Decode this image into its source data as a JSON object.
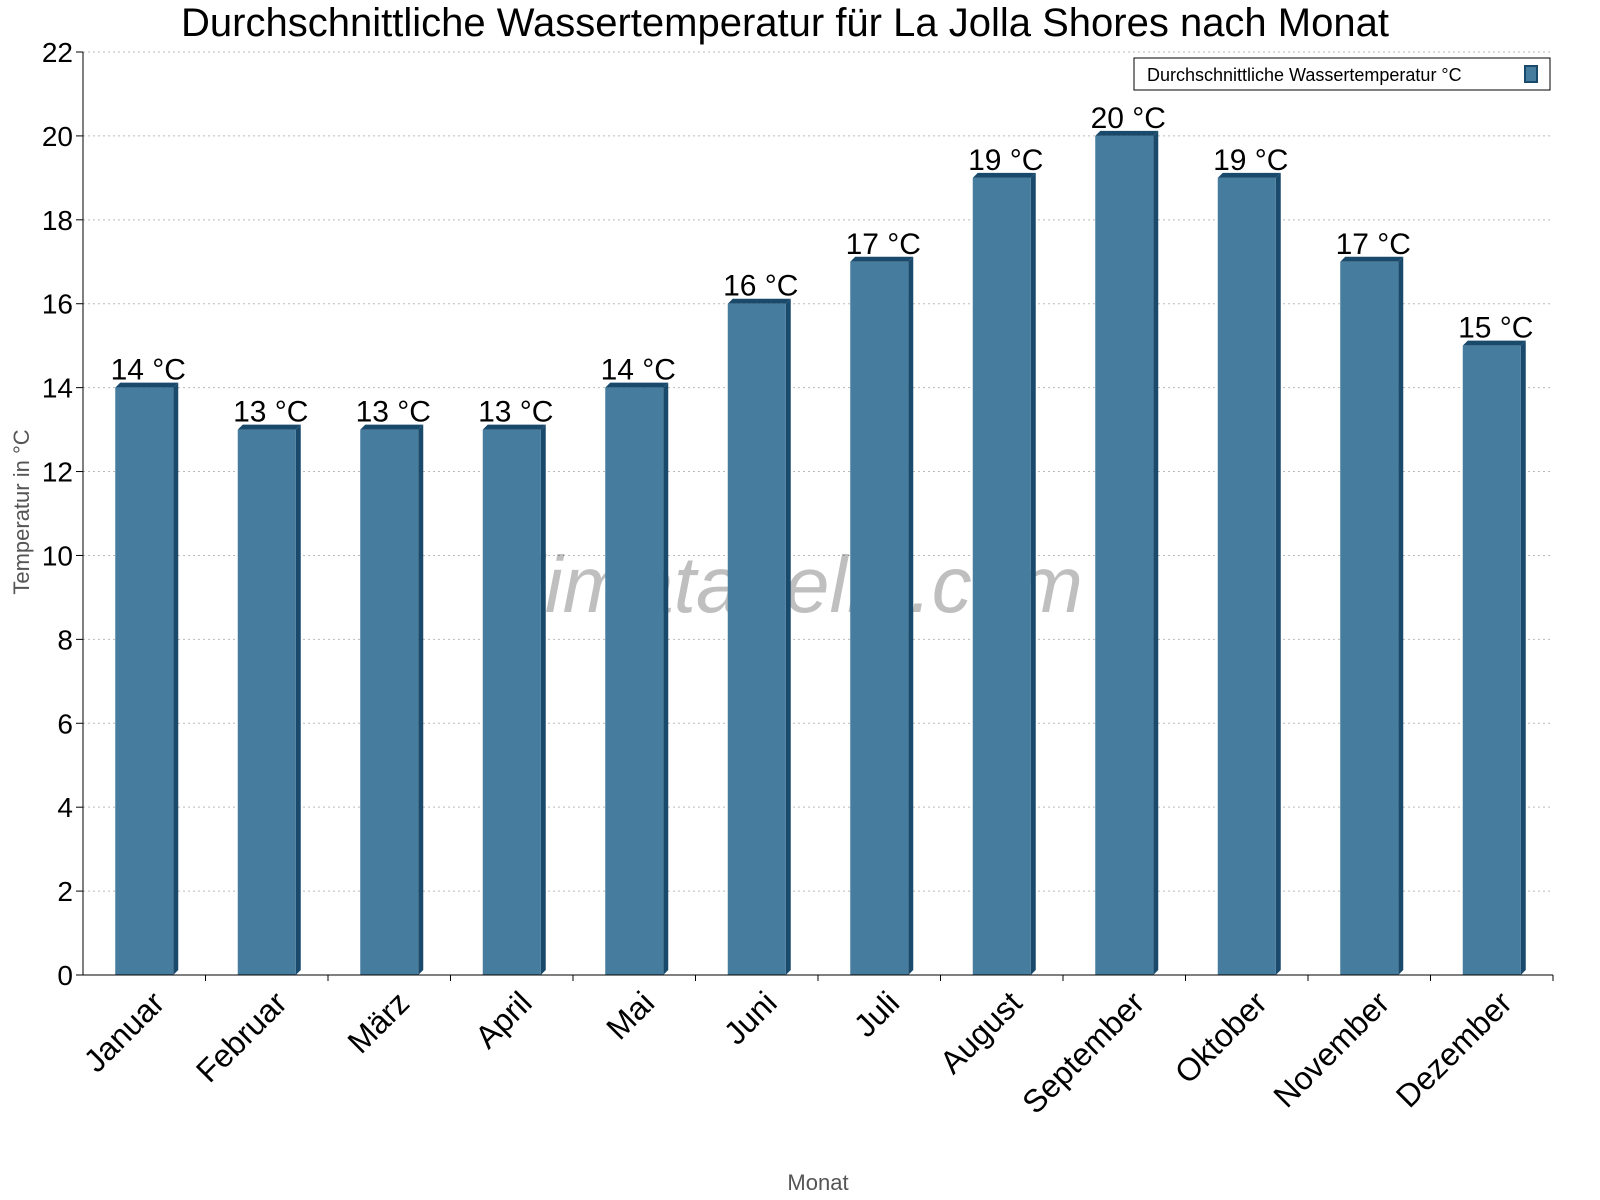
{
  "chart_data": {
    "type": "bar",
    "title": "Durchschnittliche Wassertemperatur für La Jolla Shores nach Monat",
    "xlabel": "Monat",
    "ylabel": "Temperatur in °C",
    "categories": [
      "Januar",
      "Februar",
      "März",
      "April",
      "Mai",
      "Juni",
      "Juli",
      "August",
      "September",
      "Oktober",
      "November",
      "Dezember"
    ],
    "series": [
      {
        "name": "Durchschnittliche Wassertemperatur °C",
        "values": [
          14,
          13,
          13,
          13,
          14,
          16,
          17,
          19,
          20,
          19,
          17,
          15
        ]
      }
    ],
    "data_labels": [
      "14 °C",
      "13 °C",
      "13 °C",
      "13 °C",
      "14 °C",
      "16 °C",
      "17 °C",
      "19 °C",
      "20 °C",
      "19 °C",
      "17 °C",
      "15 °C"
    ],
    "ylim": [
      0,
      22
    ],
    "yticks": [
      0,
      2,
      4,
      6,
      8,
      10,
      12,
      14,
      16,
      18,
      20,
      22
    ],
    "grid": true,
    "legend_position": "top-right",
    "watermark": "klimatabelle.com",
    "colors": {
      "bar": "#467c9e",
      "bar_edge": "#1a4a6b"
    }
  }
}
